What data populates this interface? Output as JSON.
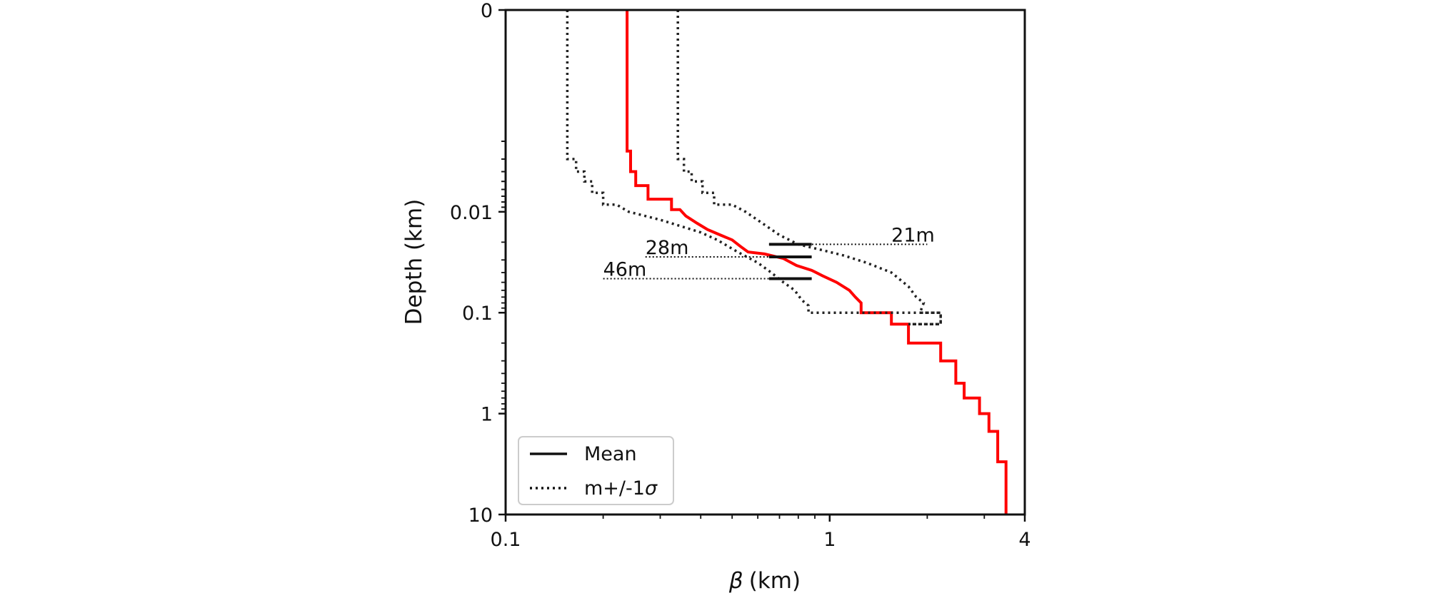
{
  "chart_data": {
    "type": "line",
    "xlabel_symbol": "β",
    "xlabel_unit": "(km)",
    "ylabel": "Depth (km)",
    "x_scale": "log",
    "y_scale": "symlog",
    "xlim": [
      0.1,
      4
    ],
    "ylim": [
      10,
      0
    ],
    "x_ticks": [
      {
        "value": 0.1,
        "label": "0.1"
      },
      {
        "value": 1,
        "label": "1"
      },
      {
        "value": 4,
        "label": "4"
      }
    ],
    "y_ticks": [
      {
        "value": 0,
        "label": "0"
      },
      {
        "value": 0.01,
        "label": "0.01"
      },
      {
        "value": 0.1,
        "label": "0.1"
      },
      {
        "value": 1,
        "label": "1"
      },
      {
        "value": 10,
        "label": "10"
      }
    ],
    "grid": false,
    "legend": {
      "location": "lower-left",
      "entries": [
        {
          "label": "Mean",
          "style": "solid"
        },
        {
          "label_main": "m+/-1",
          "label_symbol": "σ",
          "style": "dotted"
        }
      ]
    },
    "series": [
      {
        "style": "solid",
        "color": "#ff0000",
        "points": [
          [
            0.237,
            0
          ],
          [
            0.237,
            0.0025
          ],
          [
            0.243,
            0.0025
          ],
          [
            0.243,
            0.004
          ],
          [
            0.252,
            0.004
          ],
          [
            0.252,
            0.0055
          ],
          [
            0.275,
            0.0055
          ],
          [
            0.275,
            0.0075
          ],
          [
            0.325,
            0.0075
          ],
          [
            0.325,
            0.0095
          ],
          [
            0.345,
            0.0095
          ],
          [
            0.36,
            0.011
          ],
          [
            0.39,
            0.013
          ],
          [
            0.42,
            0.015
          ],
          [
            0.46,
            0.017
          ],
          [
            0.5,
            0.019
          ],
          [
            0.53,
            0.022
          ],
          [
            0.56,
            0.025
          ],
          [
            0.63,
            0.0262
          ],
          [
            0.72,
            0.029
          ],
          [
            0.79,
            0.034
          ],
          [
            0.88,
            0.038
          ],
          [
            0.95,
            0.043
          ],
          [
            1.05,
            0.05
          ],
          [
            1.15,
            0.06
          ],
          [
            1.2,
            0.07
          ],
          [
            1.25,
            0.08
          ],
          [
            1.25,
            0.1
          ],
          [
            1.55,
            0.1
          ],
          [
            1.55,
            0.13
          ],
          [
            1.75,
            0.13
          ],
          [
            1.75,
            0.2
          ],
          [
            2.2,
            0.2
          ],
          [
            2.2,
            0.3
          ],
          [
            2.45,
            0.3
          ],
          [
            2.45,
            0.5
          ],
          [
            2.6,
            0.5
          ],
          [
            2.6,
            0.7
          ],
          [
            2.9,
            0.7
          ],
          [
            2.9,
            1
          ],
          [
            3.1,
            1
          ],
          [
            3.1,
            1.5
          ],
          [
            3.3,
            1.5
          ],
          [
            3.3,
            3
          ],
          [
            3.5,
            3
          ],
          [
            3.5,
            10
          ]
        ]
      },
      {
        "style": "dotted",
        "color": "#222222",
        "points": [
          [
            0.155,
            0
          ],
          [
            0.155,
            0.003
          ],
          [
            0.165,
            0.003
          ],
          [
            0.165,
            0.004
          ],
          [
            0.175,
            0.004
          ],
          [
            0.175,
            0.005
          ],
          [
            0.185,
            0.005
          ],
          [
            0.185,
            0.0065
          ],
          [
            0.2,
            0.0065
          ],
          [
            0.2,
            0.0085
          ],
          [
            0.22,
            0.0085
          ],
          [
            0.24,
            0.01
          ],
          [
            0.3,
            0.012
          ],
          [
            0.35,
            0.014
          ],
          [
            0.4,
            0.016
          ],
          [
            0.45,
            0.019
          ],
          [
            0.52,
            0.025
          ],
          [
            0.6,
            0.032
          ],
          [
            0.66,
            0.04
          ],
          [
            0.72,
            0.05
          ],
          [
            0.78,
            0.06
          ],
          [
            0.82,
            0.075
          ],
          [
            0.86,
            0.085
          ],
          [
            0.86,
            0.1
          ],
          [
            2.2,
            0.1
          ],
          [
            2.2,
            0.13
          ],
          [
            1.75,
            0.13
          ]
        ]
      },
      {
        "style": "dotted",
        "color": "#222222",
        "points": [
          [
            0.34,
            0
          ],
          [
            0.34,
            0.003
          ],
          [
            0.355,
            0.003
          ],
          [
            0.355,
            0.004
          ],
          [
            0.375,
            0.004
          ],
          [
            0.375,
            0.005
          ],
          [
            0.405,
            0.005
          ],
          [
            0.405,
            0.0065
          ],
          [
            0.44,
            0.0065
          ],
          [
            0.44,
            0.0085
          ],
          [
            0.5,
            0.0085
          ],
          [
            0.55,
            0.01
          ],
          [
            0.62,
            0.013
          ],
          [
            0.7,
            0.017
          ],
          [
            0.8,
            0.021
          ],
          [
            0.95,
            0.024
          ],
          [
            1.1,
            0.027
          ],
          [
            1.3,
            0.032
          ],
          [
            1.55,
            0.04
          ],
          [
            1.75,
            0.055
          ],
          [
            1.85,
            0.07
          ],
          [
            1.95,
            0.08
          ],
          [
            1.9,
            0.1
          ],
          [
            2.2,
            0.1
          ],
          [
            2.2,
            0.13
          ],
          [
            1.75,
            0.13
          ]
        ]
      }
    ],
    "annotations": [
      {
        "label": "21m",
        "depth": 0.021,
        "line_from": 0.65,
        "line_to": 2.0,
        "text_at": 1.55,
        "bar_from": 0.65,
        "bar_to": 0.88
      },
      {
        "label": "28m",
        "depth": 0.028,
        "line_from": 0.27,
        "line_to": 0.88,
        "text_at": 0.27,
        "bar_from": 0.65,
        "bar_to": 0.88
      },
      {
        "label": "46m",
        "depth": 0.046,
        "line_from": 0.2,
        "line_to": 0.88,
        "text_at": 0.2,
        "bar_from": 0.65,
        "bar_to": 0.88
      }
    ]
  }
}
